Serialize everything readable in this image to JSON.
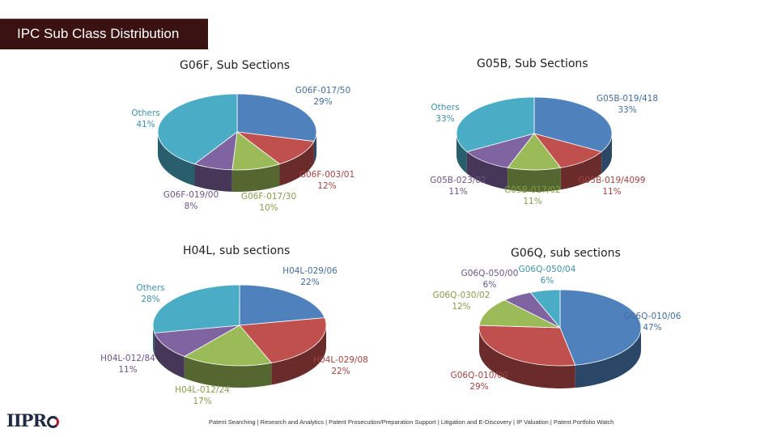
{
  "page": {
    "title": "IPC Sub Class Distribution",
    "footer": "Patent Searching | Research and Analytics | Patent Prosecution/Preparation Support | Litigation and E-Discovery | IP Valuation | Patent Portfolio Watch",
    "logo_text": "IIPR"
  },
  "colors": {
    "blue": "#4f81bd",
    "red": "#c0504d",
    "green": "#9bbb59",
    "purple": "#8064a2",
    "teal": "#4bacc6",
    "title_bg": "#3b1212"
  },
  "chart_data": [
    {
      "type": "pie",
      "title": "G06F, Sub Sections",
      "slices": [
        {
          "label": "G06F-017/50",
          "value": 29,
          "value_text": "29%",
          "color": "#4f81bd"
        },
        {
          "label": "G06F-003/01",
          "value": 12,
          "value_text": "12%",
          "color": "#c0504d"
        },
        {
          "label": "G06F-017/30",
          "value": 10,
          "value_text": "10%",
          "color": "#9bbb59"
        },
        {
          "label": "G06F-019/00",
          "value": 8,
          "value_text": "8%",
          "color": "#8064a2"
        },
        {
          "label": "Others",
          "value": 41,
          "value_text": "41%",
          "color": "#4bacc6"
        }
      ]
    },
    {
      "type": "pie",
      "title": "G05B, Sub Sections",
      "slices": [
        {
          "label": "G05B-019/418",
          "value": 33,
          "value_text": "33%",
          "color": "#4f81bd"
        },
        {
          "label": "G05B-019/4099",
          "value": 11,
          "value_text": "11%",
          "color": "#c0504d"
        },
        {
          "label": "G05B-017/02",
          "value": 11,
          "value_text": "11%",
          "color": "#9bbb59"
        },
        {
          "label": "G05B-023/02",
          "value": 11,
          "value_text": "11%",
          "color": "#8064a2"
        },
        {
          "label": "Others",
          "value": 33,
          "value_text": "33%",
          "color": "#4bacc6"
        }
      ]
    },
    {
      "type": "pie",
      "title": "H04L, sub sections",
      "slices": [
        {
          "label": "H04L-029/06",
          "value": 22,
          "value_text": "22%",
          "color": "#4f81bd"
        },
        {
          "label": "H04L-029/08",
          "value": 22,
          "value_text": "22%",
          "color": "#c0504d"
        },
        {
          "label": "H04L-012/24",
          "value": 17,
          "value_text": "17%",
          "color": "#9bbb59"
        },
        {
          "label": "H04L-012/84",
          "value": 11,
          "value_text": "11%",
          "color": "#8064a2"
        },
        {
          "label": "Others",
          "value": 28,
          "value_text": "28%",
          "color": "#4bacc6"
        }
      ]
    },
    {
      "type": "pie",
      "title": "G06Q, sub sections",
      "slices": [
        {
          "label": "G06Q-010/06",
          "value": 47,
          "value_text": "47%",
          "color": "#4f81bd"
        },
        {
          "label": "G06Q-010/00",
          "value": 29,
          "value_text": "29%",
          "color": "#c0504d"
        },
        {
          "label": "G06Q-030/02",
          "value": 12,
          "value_text": "12%",
          "color": "#9bbb59"
        },
        {
          "label": "G06Q-050/00",
          "value": 6,
          "value_text": "6%",
          "color": "#8064a2"
        },
        {
          "label": "G06Q-050/04",
          "value": 6,
          "value_text": "6%",
          "color": "#4bacc6"
        }
      ]
    }
  ]
}
